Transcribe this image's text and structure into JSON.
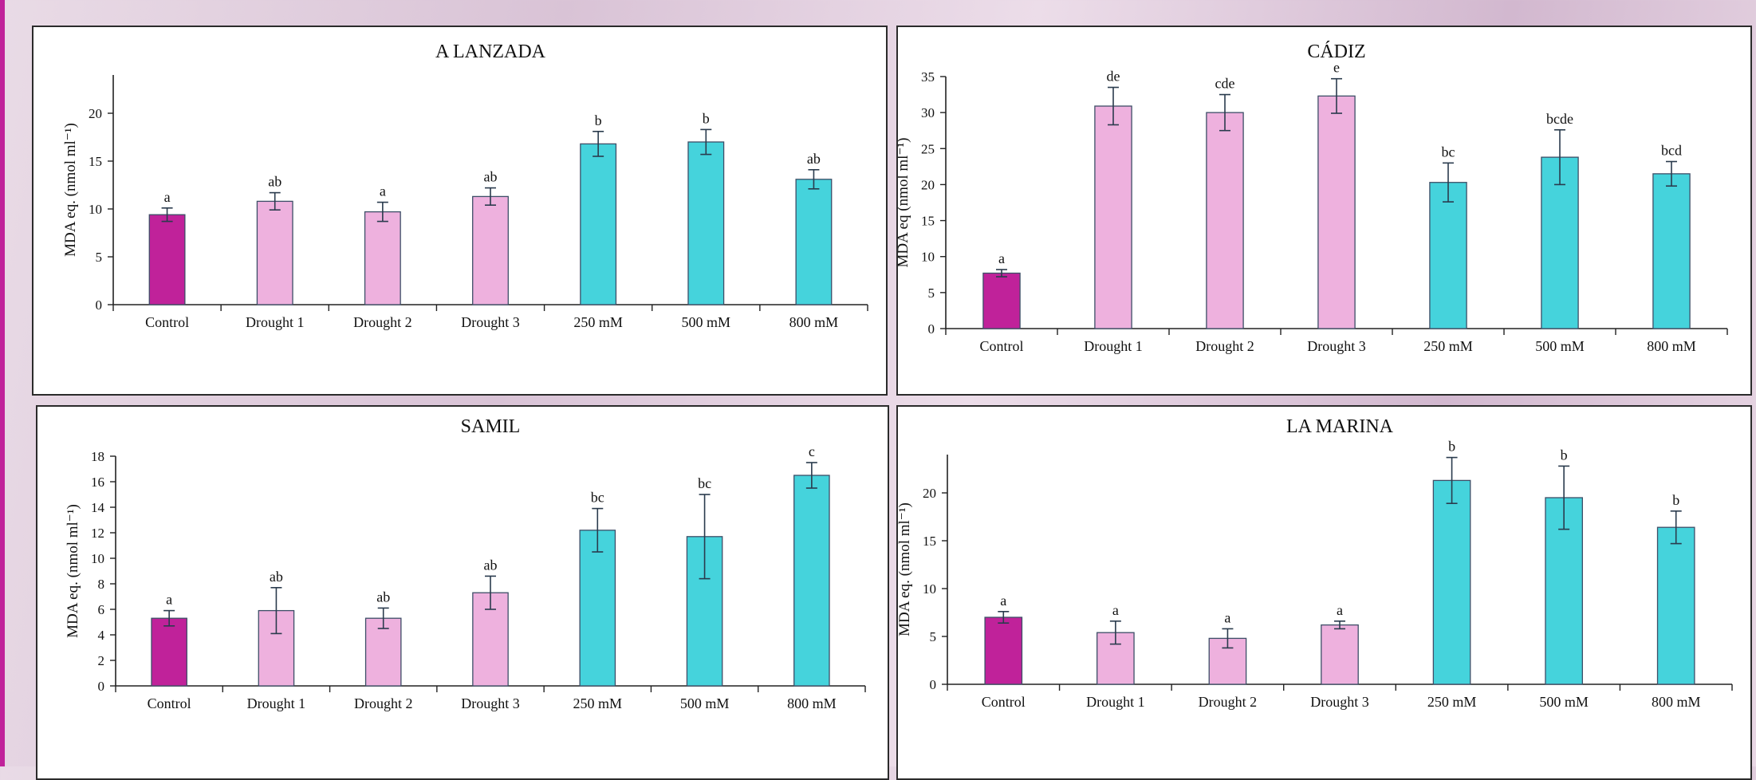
{
  "colors": {
    "control": "#c0229a",
    "drought": "#eeb1de",
    "salt": "#45d3dc",
    "accent": "#c0229a"
  },
  "chart_data": [
    {
      "type": "bar",
      "title": "A LANZADA",
      "ylabel": "MDA eq. (nmol ml⁻¹)",
      "ylim": [
        0,
        24
      ],
      "yticks": [
        0,
        5,
        10,
        15,
        20
      ],
      "categories": [
        "Control",
        "Drought 1",
        "Drought 2",
        "Drought 3",
        "250 mM",
        "500 mM",
        "800 mM"
      ],
      "values": [
        9.4,
        10.8,
        9.7,
        11.3,
        16.8,
        17.0,
        13.1
      ],
      "errors": [
        0.7,
        0.9,
        1.0,
        0.9,
        1.3,
        1.3,
        1.0
      ],
      "letters": [
        "a",
        "ab",
        "a",
        "ab",
        "b",
        "b",
        "ab"
      ],
      "bar_groups": [
        "control",
        "drought",
        "drought",
        "drought",
        "salt",
        "salt",
        "salt"
      ]
    },
    {
      "type": "bar",
      "title": "CÁDIZ",
      "ylabel": "MDA eq (nmol ml⁻¹)",
      "ylim": [
        0,
        35
      ],
      "yticks": [
        0,
        5,
        10,
        15,
        20,
        25,
        30,
        35
      ],
      "categories": [
        "Control",
        "Drought 1",
        "Drought 2",
        "Drought 3",
        "250 mM",
        "500 mM",
        "800 mM"
      ],
      "values": [
        7.7,
        30.9,
        30.0,
        32.3,
        20.3,
        23.8,
        21.5
      ],
      "errors": [
        0.5,
        2.6,
        2.5,
        2.4,
        2.7,
        3.8,
        1.7
      ],
      "letters": [
        "a",
        "de",
        "cde",
        "e",
        "bc",
        "bcde",
        "bcd"
      ],
      "bar_groups": [
        "control",
        "drought",
        "drought",
        "drought",
        "salt",
        "salt",
        "salt"
      ]
    },
    {
      "type": "bar",
      "title": "SAMIL",
      "ylabel": "MDA eq. (nmol ml⁻¹)",
      "ylim": [
        0,
        18
      ],
      "yticks": [
        0,
        2,
        4,
        6,
        8,
        10,
        12,
        14,
        16,
        18
      ],
      "categories": [
        "Control",
        "Drought 1",
        "Drought 2",
        "Drought 3",
        "250 mM",
        "500 mM",
        "800 mM"
      ],
      "values": [
        5.3,
        5.9,
        5.3,
        7.3,
        12.2,
        11.7,
        16.5
      ],
      "errors": [
        0.6,
        1.8,
        0.8,
        1.3,
        1.7,
        3.3,
        1.0
      ],
      "letters": [
        "a",
        "ab",
        "ab",
        "ab",
        "bc",
        "bc",
        "c"
      ],
      "bar_groups": [
        "control",
        "drought",
        "drought",
        "drought",
        "salt",
        "salt",
        "salt"
      ]
    },
    {
      "type": "bar",
      "title": "LA MARINA",
      "ylabel": "MDA eq. (nmol ml⁻¹)",
      "ylim": [
        0,
        24
      ],
      "yticks": [
        0,
        5,
        10,
        15,
        20
      ],
      "categories": [
        "Control",
        "Drought 1",
        "Drought 2",
        "Drought 3",
        "250 mM",
        "500 mM",
        "800 mM"
      ],
      "values": [
        7.0,
        5.4,
        4.8,
        6.2,
        21.3,
        19.5,
        16.4
      ],
      "errors": [
        0.6,
        1.2,
        1.0,
        0.4,
        2.4,
        3.3,
        1.7
      ],
      "letters": [
        "a",
        "a",
        "a",
        "a",
        "b",
        "b",
        "b"
      ],
      "bar_groups": [
        "control",
        "drought",
        "drought",
        "drought",
        "salt",
        "salt",
        "salt"
      ]
    }
  ]
}
